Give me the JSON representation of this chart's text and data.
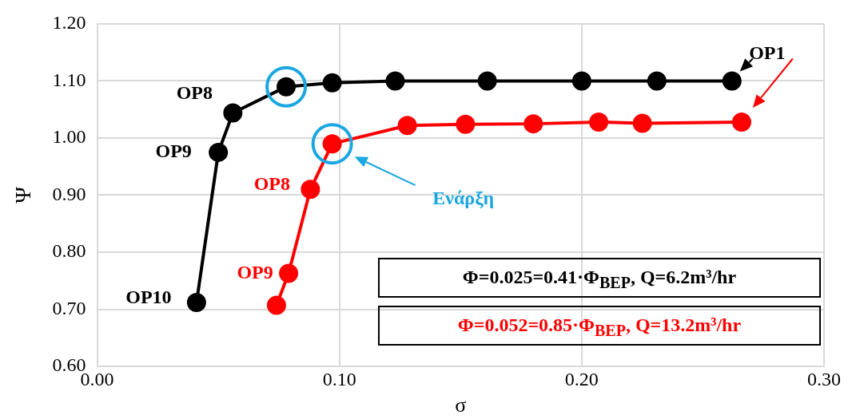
{
  "chart_data": {
    "type": "line",
    "xlabel": "σ",
    "ylabel": "Ψ",
    "xlim": [
      0,
      0.3
    ],
    "xticks": [
      {
        "value": 0,
        "label": "0.00"
      },
      {
        "value": 0.1,
        "label": "0.10"
      },
      {
        "value": 0.2,
        "label": "0.20"
      },
      {
        "value": 0.3,
        "label": "0.30"
      }
    ],
    "ylim": [
      0.6,
      1.2
    ],
    "yticks": [
      {
        "value": 0.6,
        "label": "0.60"
      },
      {
        "value": 0.7,
        "label": "0.70"
      },
      {
        "value": 0.8,
        "label": "0.80"
      },
      {
        "value": 0.9,
        "label": "0.90"
      },
      {
        "value": 1.0,
        "label": "1.00"
      },
      {
        "value": 1.1,
        "label": "1.10"
      },
      {
        "value": 1.2,
        "label": "1.20"
      }
    ],
    "grid": true,
    "legend": "bottom right",
    "marker": "circle",
    "line_style": "solid",
    "series": [
      {
        "name": "Φ=0.025=0.41·Φ$_{BEP}$, Q=6.2m³/hr",
        "color": "#000000",
        "x": [
          0.262,
          0.231,
          0.2,
          0.161,
          0.123,
          0.097,
          0.078,
          0.056,
          0.05,
          0.041
        ],
        "values": [
          1.1,
          1.1,
          1.1,
          1.1,
          1.1,
          1.097,
          1.09,
          1.044,
          0.975,
          0.712
        ]
      },
      {
        "name": "Φ=0.052=0.85·Φ$_{BEP}$, Q=13.2m³/hr",
        "color": "#ff0000",
        "x": [
          0.266,
          0.225,
          0.207,
          0.18,
          0.152,
          0.128,
          0.097,
          0.088,
          0.079,
          0.074
        ],
        "values": [
          1.028,
          1.026,
          1.028,
          1.025,
          1.024,
          1.022,
          0.99,
          0.91,
          0.763,
          0.707
        ]
      }
    ],
    "annotations": [
      {
        "text": "OP1",
        "x": 0.262,
        "y": 1.1
      },
      {
        "text": "OP8",
        "x": 0.056,
        "y": 1.044
      },
      {
        "text": "OP9",
        "x": 0.05,
        "y": 0.975
      },
      {
        "text": "OP10",
        "x": 0.041,
        "y": 0.712
      },
      {
        "text": "OP8",
        "x": 0.088,
        "y": 0.91
      },
      {
        "text": "OP9",
        "x": 0.079,
        "y": 0.763
      },
      "Ενάρξη"
    ]
  }
}
